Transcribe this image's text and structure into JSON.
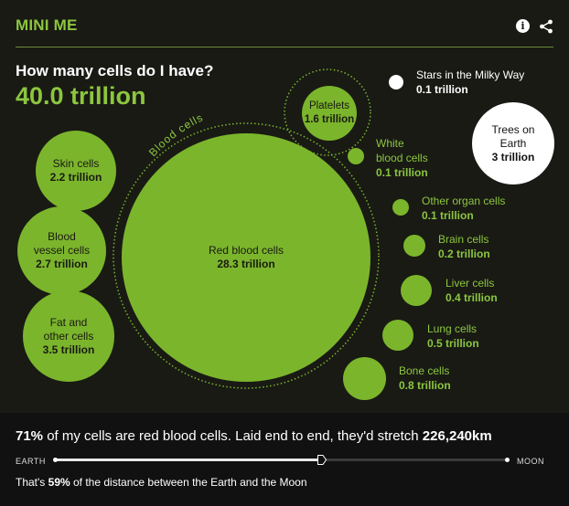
{
  "header": {
    "title": "MINI ME",
    "info_icon": "info-icon",
    "share_icon": "share-icon"
  },
  "question": "How many cells do I have?",
  "total": "40.0 trillion",
  "arc_label": "Blood cells",
  "colors": {
    "accent": "#8cc63f",
    "bubble": "#7bb52c",
    "background": "#191a14"
  },
  "cells": {
    "red_blood": {
      "name": "Red blood cells",
      "value": "28.3 trillion"
    },
    "platelets": {
      "name": "Platelets",
      "value": "1.6 trillion"
    },
    "white_blood": {
      "name_line1": "White",
      "name_line2": "blood cells",
      "value": "0.1 trillion"
    },
    "skin": {
      "name": "Skin cells",
      "value": "2.2 trillion"
    },
    "blood_vessel": {
      "name_line1": "Blood",
      "name_line2": "vessel cells",
      "value": "2.7 trillion"
    },
    "fat": {
      "name_line1": "Fat and",
      "name_line2": "other cells",
      "value": "3.5 trillion"
    },
    "other_organ": {
      "name": "Other organ cells",
      "value": "0.1 trillion"
    },
    "brain": {
      "name": "Brain cells",
      "value": "0.2 trillion"
    },
    "liver": {
      "name": "Liver cells",
      "value": "0.4 trillion"
    },
    "lung": {
      "name": "Lung cells",
      "value": "0.5 trillion"
    },
    "bone": {
      "name": "Bone cells",
      "value": "0.8 trillion"
    }
  },
  "comparisons": {
    "stars": {
      "name": "Stars in the Milky Way",
      "value": "0.1 trillion"
    },
    "trees": {
      "name_line1": "Trees on",
      "name_line2": "Earth",
      "value": "3 trillion"
    }
  },
  "footer": {
    "percent": "71%",
    "summary_mid": " of my cells are red blood cells. Laid end to end, they'd stretch ",
    "distance_km": "226,240km",
    "earth_label": "EARTH",
    "moon_label": "MOON",
    "distance_prefix": "That's ",
    "distance_percent": "59%",
    "distance_suffix": " of the distance between the Earth and the Moon",
    "progress_fraction": 0.59
  }
}
